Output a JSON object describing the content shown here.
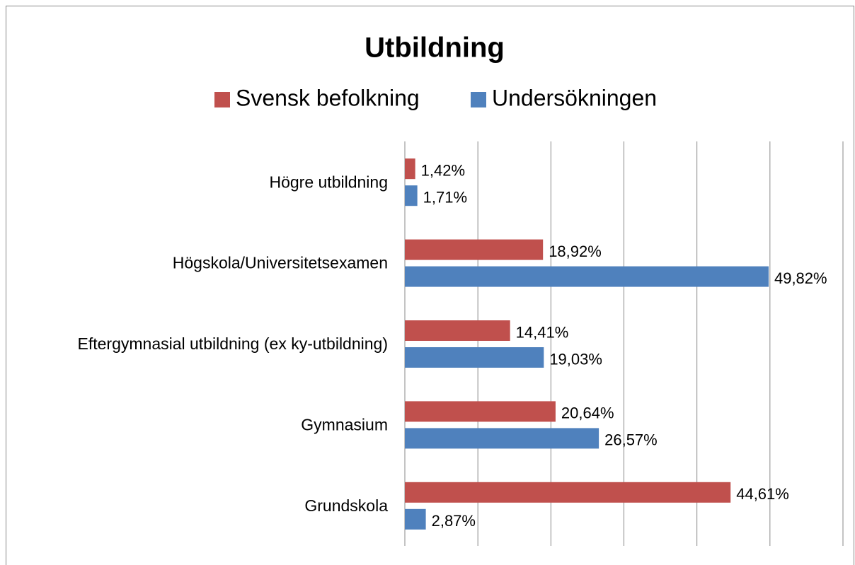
{
  "chart_data": {
    "type": "bar",
    "orientation": "horizontal",
    "title": "Utbildning",
    "categories": [
      "Högre utbildning",
      "Högskola/Universitetsexamen",
      "Eftergymnasial utbildning (ex ky-utbildning)",
      "Gymnasium",
      "Grundskola"
    ],
    "series": [
      {
        "name": "Svensk befolkning",
        "color": "#c0504d",
        "values": [
          1.42,
          18.92,
          14.41,
          20.64,
          44.61
        ],
        "value_labels": [
          "1,42%",
          "18,92%",
          "14,41%",
          "20,64%",
          "44,61%"
        ]
      },
      {
        "name": "Undersökningen",
        "color": "#4f81bd",
        "values": [
          1.71,
          49.82,
          19.03,
          26.57,
          2.87
        ],
        "value_labels": [
          "1,71%",
          "49,82%",
          "19,03%",
          "26,57%",
          "2,87%"
        ]
      }
    ],
    "xlim": [
      0,
      60
    ],
    "xticks": [
      0,
      10,
      20,
      30,
      40,
      50,
      60
    ],
    "grid": true,
    "legend": "top"
  }
}
